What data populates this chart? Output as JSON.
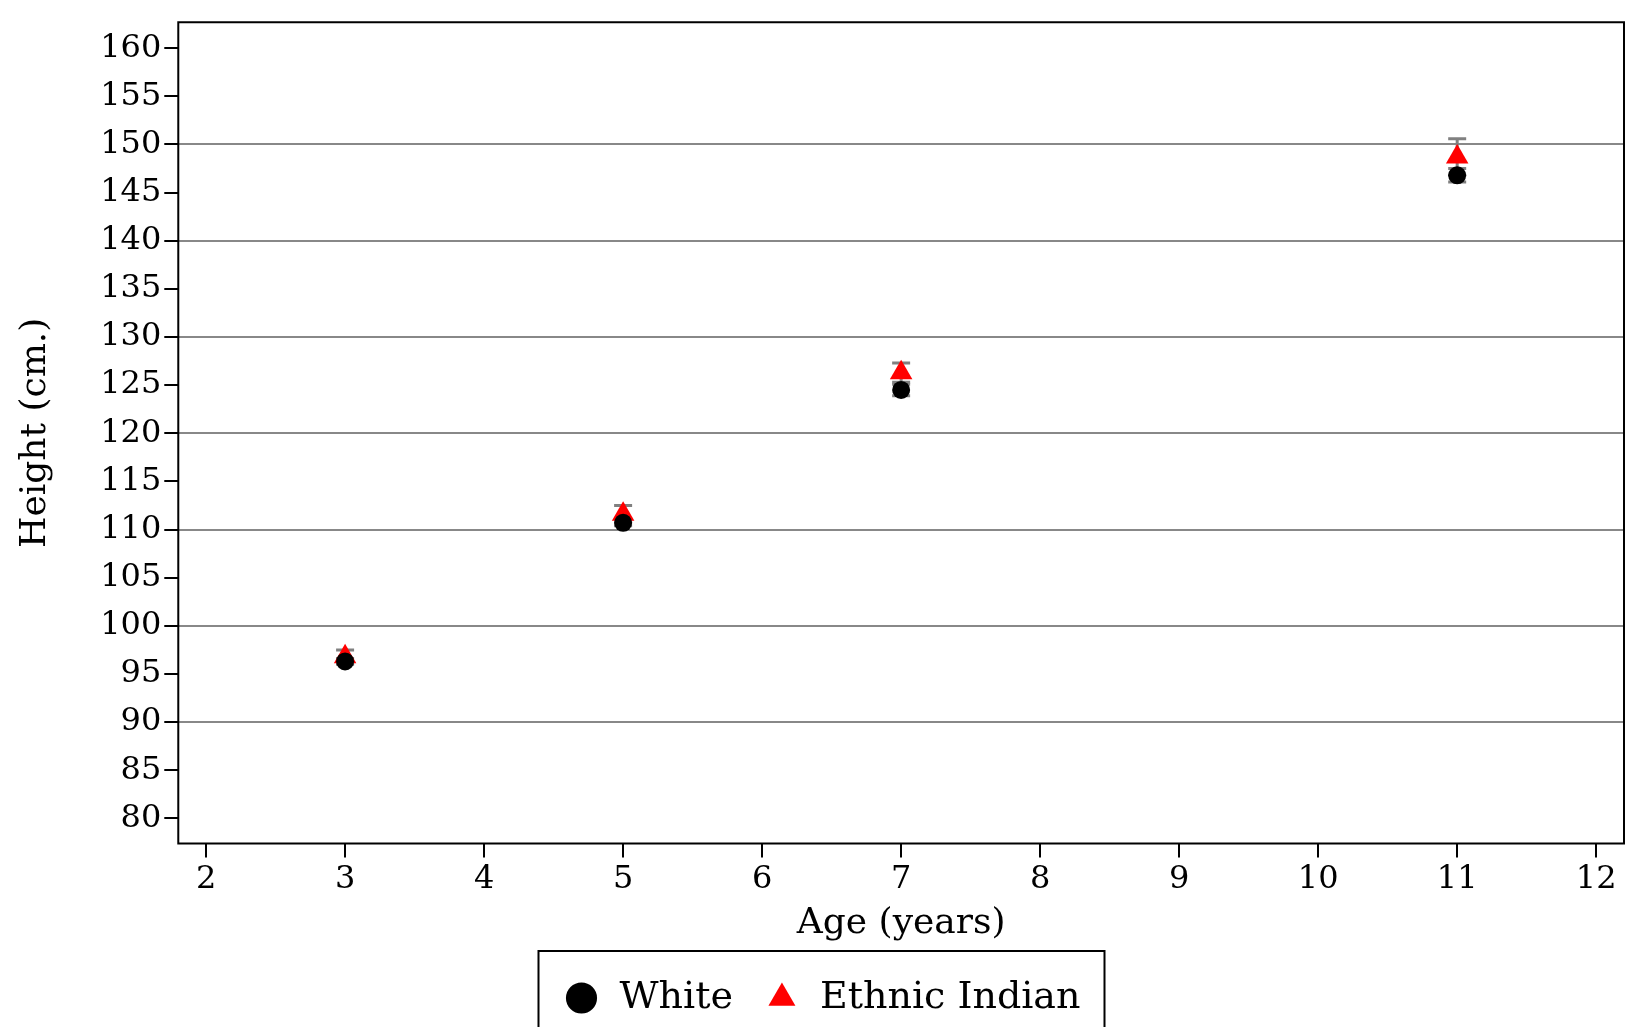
{
  "chart_data": {
    "type": "scatter",
    "xlabel": "Age (years)",
    "ylabel": "Height (cm.)",
    "x": [
      3,
      5,
      7,
      11
    ],
    "series": [
      {
        "name": "White",
        "color": "#000000",
        "marker": "circle",
        "values": [
          96.3,
          110.7,
          124.5,
          146.8
        ],
        "errors": [
          0.3,
          0.3,
          0.6,
          0.7
        ]
      },
      {
        "name": "Ethnic Indian",
        "color": "#ff0000",
        "marker": "triangle",
        "values": [
          96.8,
          111.6,
          126.3,
          148.7
        ],
        "errors": [
          0.7,
          0.9,
          1.0,
          1.9
        ]
      }
    ],
    "xlim": [
      1.8,
      12.2
    ],
    "xticks": [
      2,
      3,
      4,
      5,
      6,
      7,
      8,
      9,
      10,
      11,
      12
    ],
    "ylim": [
      77.4,
      162.7
    ],
    "yticks": [
      80,
      85,
      90,
      95,
      100,
      105,
      110,
      115,
      120,
      125,
      130,
      135,
      140,
      145,
      150,
      155,
      160
    ],
    "grid": "y",
    "legend": "bottom"
  }
}
